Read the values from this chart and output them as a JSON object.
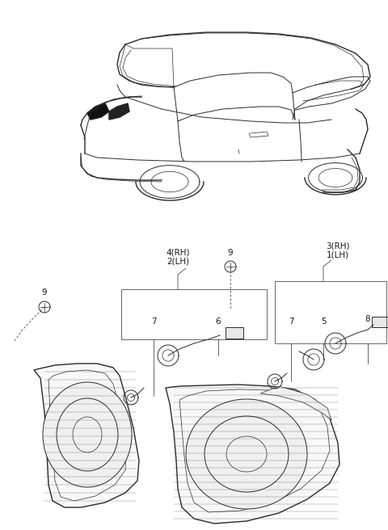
{
  "bg_color": "#ffffff",
  "line_color": "#2a2a2a",
  "lw_main": 1.0,
  "lw_med": 0.7,
  "lw_thin": 0.5,
  "car_region": [
    0,
    0.55,
    1,
    1
  ],
  "parts_region": [
    0,
    0,
    1,
    0.55
  ],
  "labels": {
    "9_left": "9",
    "9_right": "9",
    "4rh2lh": "4(RH)\n2(LH)",
    "3rh1lh": "3(RH)\n1(LH)",
    "num6": "6",
    "num7l": "7",
    "num7r": "7",
    "num5": "5",
    "num8": "8"
  },
  "font_size": 7.5
}
